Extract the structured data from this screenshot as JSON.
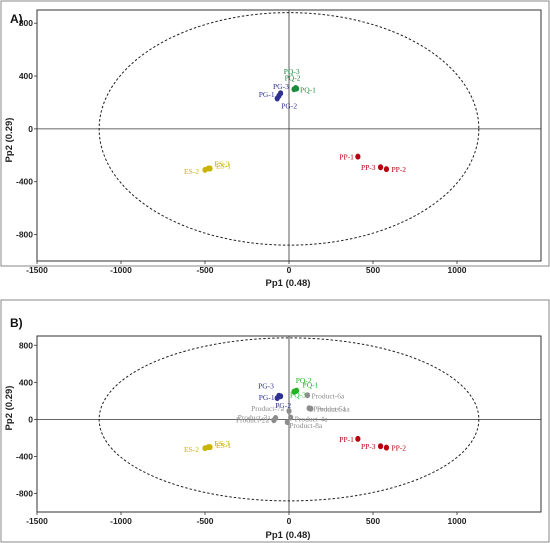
{
  "chart_data": [
    {
      "type": "scatter",
      "panel_label": "A)",
      "xlabel": "Pp1 (0.48)",
      "ylabel": "Pp2 (0.29)",
      "xlim": [
        -1500,
        1500
      ],
      "ylim": [
        -1000,
        900
      ],
      "xticks": [
        -1500,
        -1000,
        -500,
        0,
        500,
        1000
      ],
      "yticks": [
        -800,
        -400,
        0,
        400,
        800
      ],
      "ellipse": {
        "cx": 0,
        "cy": 0,
        "rx": 1130,
        "ry": 880
      },
      "series": [
        {
          "color": "#2e3192",
          "points": [
            {
              "label": "PG-1",
              "x": -50,
              "y": 270
            },
            {
              "label": "PG-2",
              "x": -70,
              "y": 230
            },
            {
              "label": "PG-3",
              "x": -60,
              "y": 250
            }
          ]
        },
        {
          "color": "#1e8a3c",
          "points": [
            {
              "label": "PQ-1",
              "x": 30,
              "y": 300
            },
            {
              "label": "PQ-2",
              "x": 45,
              "y": 305
            },
            {
              "label": "PQ-3",
              "x": 40,
              "y": 310
            }
          ]
        },
        {
          "color": "#b8000f",
          "points": [
            {
              "label": "PP-1",
              "x": 410,
              "y": -210
            },
            {
              "label": "PP-2",
              "x": 580,
              "y": -305
            },
            {
              "label": "PP-3",
              "x": 545,
              "y": -290
            }
          ]
        },
        {
          "color": "#c8b400",
          "points": [
            {
              "label": "ES-1",
              "x": -470,
              "y": -300
            },
            {
              "label": "ES-2",
              "x": -500,
              "y": -310
            },
            {
              "label": "ES-3",
              "x": -480,
              "y": -300
            }
          ]
        }
      ]
    },
    {
      "type": "scatter",
      "panel_label": "B)",
      "xlabel": "Pp1 (0.48)",
      "ylabel": "Pp2 (0.29)",
      "xlim": [
        -1500,
        1500
      ],
      "ylim": [
        -1000,
        900
      ],
      "xticks": [
        -1500,
        -1000,
        -500,
        0,
        500,
        1000
      ],
      "yticks": [
        -800,
        -400,
        0,
        400,
        800
      ],
      "ellipse": {
        "cx": 0,
        "cy": 0,
        "rx": 1130,
        "ry": 880
      },
      "series": [
        {
          "color": "#2e3192",
          "points": [
            {
              "label": "PG-1",
              "x": -50,
              "y": 250
            },
            {
              "label": "PG-3",
              "x": -60,
              "y": 255
            },
            {
              "label": "PG-2",
              "x": -70,
              "y": 230
            }
          ]
        },
        {
          "color": "#22b422",
          "points": [
            {
              "label": "PQ-2",
              "x": 40,
              "y": 305
            },
            {
              "label": "PQ-3",
              "x": 30,
              "y": 300
            },
            {
              "label": "PQ-1",
              "x": 45,
              "y": 310
            }
          ]
        },
        {
          "color": "#b8000f",
          "points": [
            {
              "label": "PP-1",
              "x": 410,
              "y": -210
            },
            {
              "label": "PP-3",
              "x": 545,
              "y": -290
            },
            {
              "label": "PP-2",
              "x": 580,
              "y": -305
            }
          ]
        },
        {
          "color": "#c8b400",
          "points": [
            {
              "label": "ES-2",
              "x": -500,
              "y": -310
            },
            {
              "label": "ES-1",
              "x": -470,
              "y": -300
            },
            {
              "label": "ES-3",
              "x": -480,
              "y": -300
            }
          ]
        },
        {
          "color": "#8c8c8c",
          "points": [
            {
              "label": "Product-6a",
              "x": 110,
              "y": 260
            },
            {
              "label": "Product-5a",
              "x": 120,
              "y": 120
            },
            {
              "label": "Product-1a",
              "x": 130,
              "y": 115
            },
            {
              "label": "Product-7a",
              "x": 0,
              "y": 90
            },
            {
              "label": "Product-4a",
              "x": 10,
              "y": 20
            },
            {
              "label": "Product-3a",
              "x": -80,
              "y": 15
            },
            {
              "label": "Product-2a",
              "x": -90,
              "y": -10
            },
            {
              "label": "Product-8a",
              "x": -10,
              "y": -30
            }
          ]
        }
      ]
    }
  ]
}
